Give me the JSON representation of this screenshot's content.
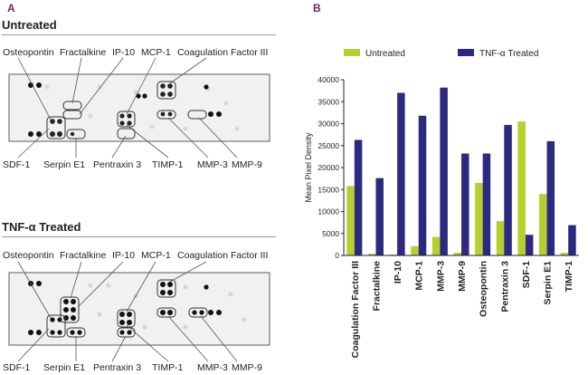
{
  "panels": {
    "a": {
      "letter": "A"
    },
    "b": {
      "letter": "B"
    }
  },
  "blots": [
    {
      "title": "Untreated",
      "top_labels": [
        "Osteopontin",
        "Fractalkine",
        "IP-10",
        "MCP-1",
        "Coagulation Factor III"
      ],
      "bottom_labels": [
        "SDF-1",
        "Serpin E1",
        "Pentraxin 3",
        "TIMP-1",
        "MMP-3",
        "MMP-9"
      ]
    },
    {
      "title": "TNF-α Treated",
      "top_labels": [
        "Osteopontin",
        "Fractalkine",
        "IP-10",
        "MCP-1",
        "Coagulation Factor III"
      ],
      "bottom_labels": [
        "SDF-1",
        "Serpin E1",
        "Pentraxin 3",
        "TIMP-1",
        "MMP-3",
        "MMP-9"
      ]
    }
  ],
  "colors": {
    "untreated": "#b5cf2e",
    "treated": "#2b2a80",
    "membrane": "#f1f1f1",
    "panel_letter": "#7a1f5c"
  },
  "chart_data": {
    "type": "bar",
    "categories": [
      "Coagulation Factor III",
      "Fractalkine",
      "IP-10",
      "MCP-1",
      "MMP-3",
      "MMP-9",
      "Osteopontin",
      "Pentraxin 3",
      "SDF-1",
      "Serpin E1",
      "TIMP-1"
    ],
    "series": [
      {
        "name": "Untreated",
        "values": [
          15800,
          400,
          200,
          2100,
          4200,
          600,
          16500,
          7800,
          30500,
          14000,
          600
        ]
      },
      {
        "name": "TNF-α Treated",
        "values": [
          26300,
          17600,
          37000,
          31800,
          38200,
          23200,
          23200,
          29700,
          4700,
          26000,
          6900
        ]
      }
    ],
    "ylabel": "Mean Pixel Density",
    "ylim": [
      0,
      40000
    ],
    "yticks": [
      0,
      5000,
      10000,
      15000,
      20000,
      25000,
      30000,
      35000,
      40000
    ],
    "legend": "top",
    "grid": false
  }
}
